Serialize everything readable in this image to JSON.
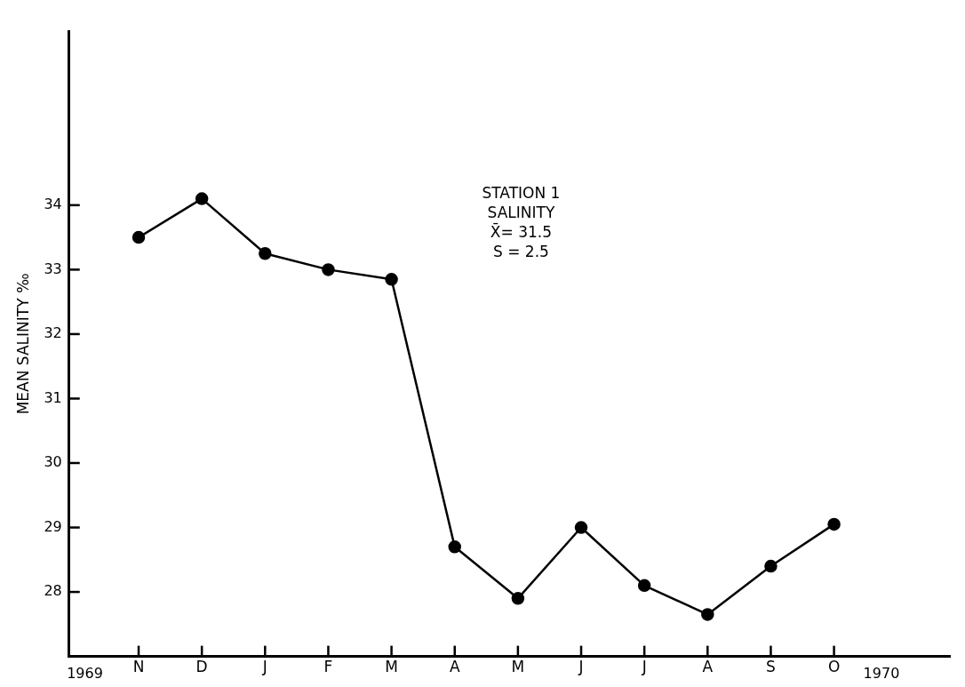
{
  "chart_data": {
    "type": "line",
    "ylabel": "MEAN SALINITY ‰",
    "categories": [
      "N",
      "D",
      "J",
      "F",
      "M",
      "A",
      "M",
      "J",
      "J",
      "A",
      "S",
      "O"
    ],
    "series": [
      {
        "color": "#000000",
        "values": [
          33.5,
          34.1,
          33.25,
          33.0,
          32.85,
          28.7,
          27.9,
          29.0,
          28.1,
          27.65,
          28.4,
          29.05
        ]
      }
    ],
    "ylim": [
      27,
      36.7
    ],
    "yticks": [
      28,
      29,
      30,
      31,
      32,
      33,
      34
    ],
    "annotations": [
      "1969",
      "1970",
      "STATION 1",
      "SALINITY",
      "X̄= 31.5",
      "S = 2.5"
    ],
    "grid": false,
    "legend": false,
    "marker": "circle",
    "line_style": "solid"
  }
}
